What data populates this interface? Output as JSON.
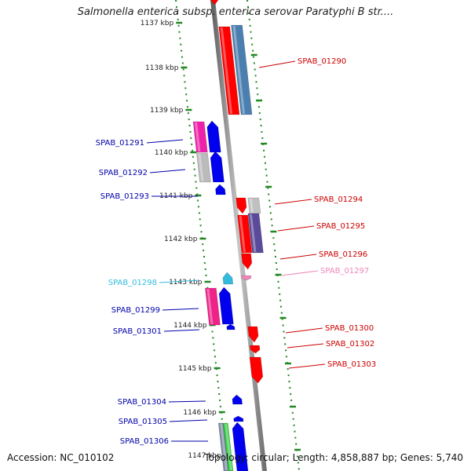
{
  "title": "Salmonella enterica subsp. enterica serovar Paratyphi B str....",
  "accession_text": "Accession: NC_010102",
  "stats_text": "Topology: circular; Length: 4,858,887 bp; Genes: 5,740",
  "kbp_ticks": [
    "1137 kbp",
    "1138 kbp",
    "1139 kbp",
    "1140 kbp",
    "1141 kbp",
    "1142 kbp",
    "1143 kbp",
    "1144 kbp",
    "1145 kbp",
    "1146 kbp",
    "1147 kbp"
  ],
  "colors": {
    "strand_plus": "#ff0000",
    "strand_minus": "#0000ee",
    "label_plus": "#cc0000",
    "label_minus": "#0000aa",
    "highlight_light_blue": "#33bbdd",
    "highlight_pink": "#ee88bb",
    "backbone": "#888888",
    "dotted_guides": "#228822"
  },
  "genes": [
    {
      "id": "SPAB_01290",
      "strand": "+",
      "label_color": "#cc0000"
    },
    {
      "id": "SPAB_01291",
      "strand": "-",
      "label_color": "#0000aa"
    },
    {
      "id": "SPAB_01292",
      "strand": "-",
      "label_color": "#0000aa"
    },
    {
      "id": "SPAB_01293",
      "strand": "-",
      "label_color": "#0000aa"
    },
    {
      "id": "SPAB_01294",
      "strand": "+",
      "label_color": "#cc0000"
    },
    {
      "id": "SPAB_01295",
      "strand": "+",
      "label_color": "#cc0000"
    },
    {
      "id": "SPAB_01296",
      "strand": "+",
      "label_color": "#cc0000"
    },
    {
      "id": "SPAB_01297",
      "strand": "+",
      "label_color": "#ee88bb"
    },
    {
      "id": "SPAB_01298",
      "strand": "-",
      "label_color": "#33bbdd"
    },
    {
      "id": "SPAB_01299",
      "strand": "-",
      "label_color": "#0000aa"
    },
    {
      "id": "SPAB_01300",
      "strand": "+",
      "label_color": "#cc0000"
    },
    {
      "id": "SPAB_01301",
      "strand": "-",
      "label_color": "#0000aa"
    },
    {
      "id": "SPAB_01302",
      "strand": "+",
      "label_color": "#cc0000"
    },
    {
      "id": "SPAB_01303",
      "strand": "+",
      "label_color": "#cc0000"
    },
    {
      "id": "SPAB_01304",
      "strand": "-",
      "label_color": "#0000aa"
    },
    {
      "id": "SPAB_01305",
      "strand": "-",
      "label_color": "#0000aa"
    },
    {
      "id": "SPAB_01306",
      "strand": "-",
      "label_color": "#0000aa"
    }
  ]
}
